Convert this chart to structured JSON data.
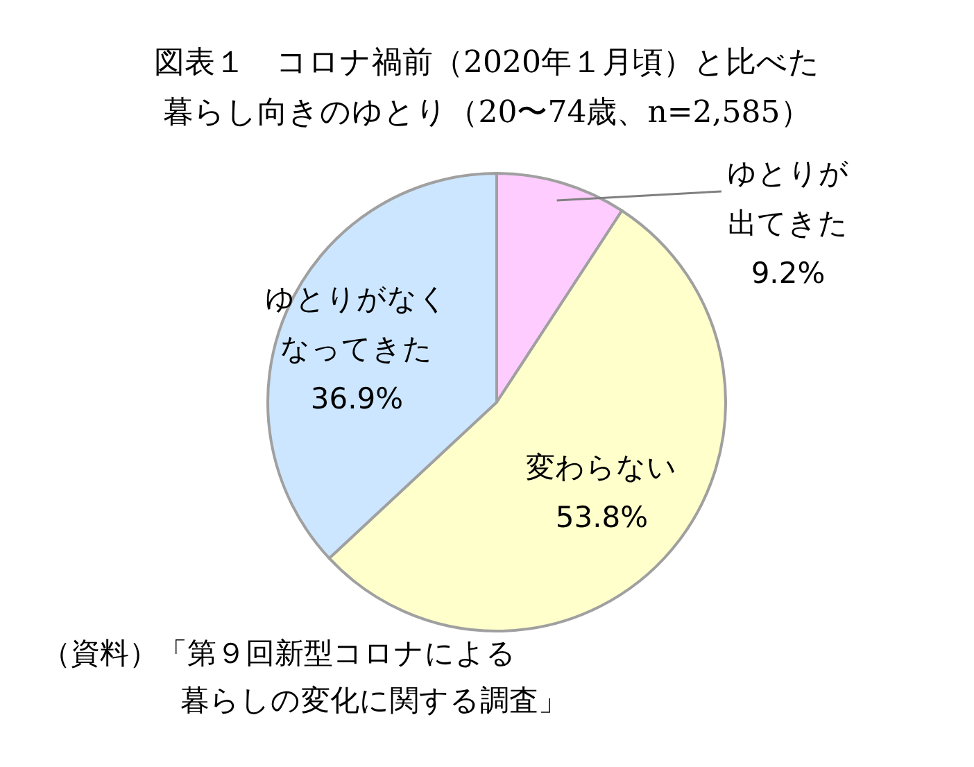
{
  "chart_data": {
    "type": "pie",
    "title": "図表１　コロナ禍前（2020年１月頃）と比べた",
    "subtitle": "暮らし向きのゆとり（20〜74歳、n=2,585）",
    "categories": [
      "ゆとりが出てきた",
      "変わらない",
      "ゆとりがなくなってきた"
    ],
    "values": [
      9.2,
      53.8,
      36.9
    ],
    "value_labels": [
      "9.2%",
      "53.8%",
      "36.9%"
    ],
    "colors": [
      "#ffccff",
      "#ffffcc",
      "#cce6ff"
    ],
    "annotations": [
      "（資料）「第９回新型コロナによる",
      "暮らしの変化に関する調査」"
    ]
  }
}
